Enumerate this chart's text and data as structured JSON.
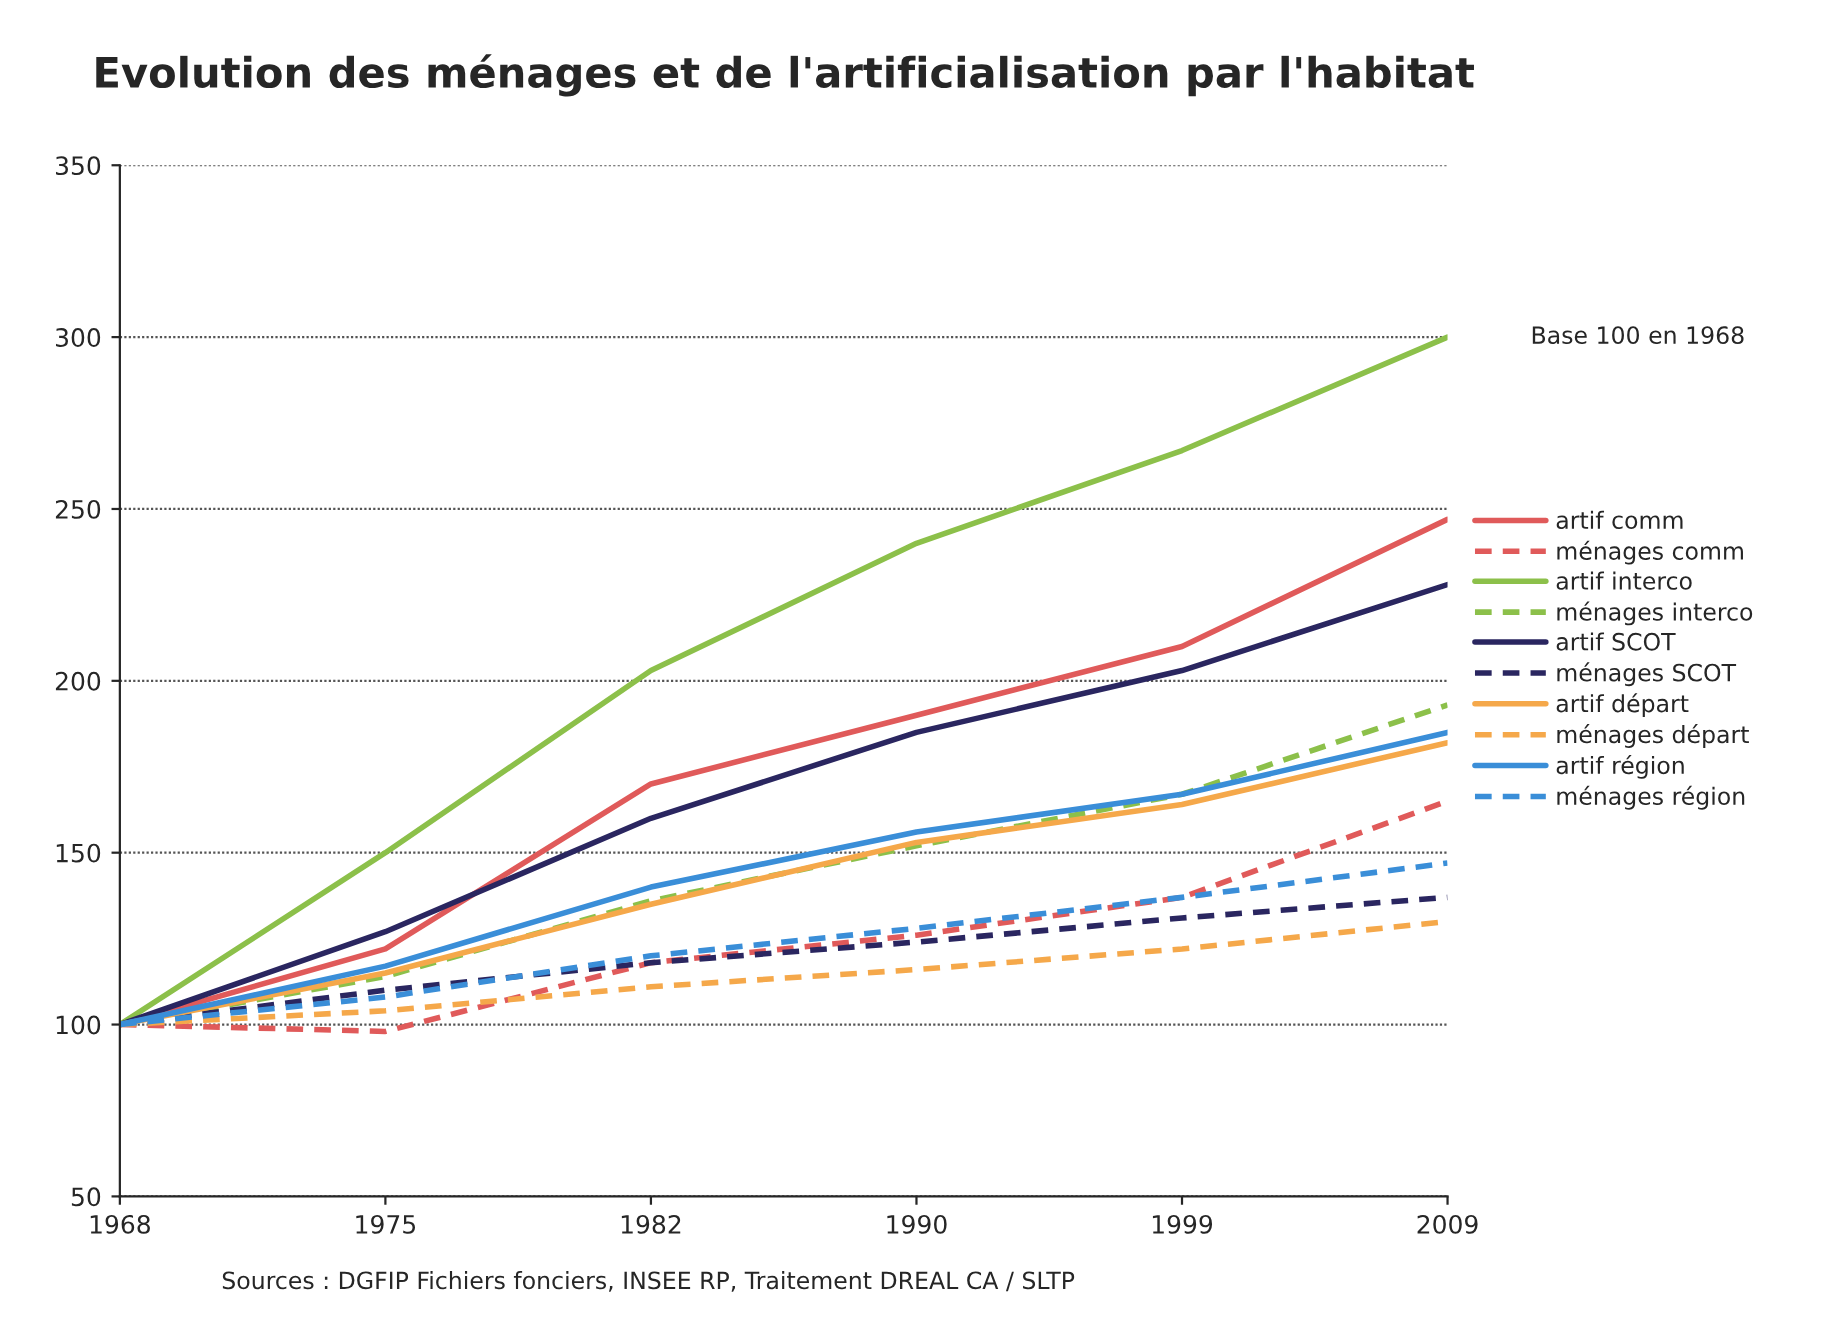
{
  "chart_data": {
    "type": "line",
    "title": "Evolution des ménages et de l'artificialisation par l'habitat",
    "categories": [
      "1968",
      "1975",
      "1982",
      "1990",
      "1999",
      "2009"
    ],
    "ylim": [
      50,
      350
    ],
    "yticks": [
      50,
      100,
      150,
      200,
      250,
      300,
      350
    ],
    "grid": "y",
    "legend": "right",
    "marker": "none",
    "annotations": [
      "Base 100 en 1968",
      "Sources : DGFIP Fichiers fonciers, INSEE RP, Traitement DREAL CA / SLTP"
    ],
    "series": [
      {
        "name": "artif comm",
        "color": "#e05a5a",
        "line_style": "solid",
        "values": [
          100,
          122,
          170,
          190,
          210,
          247
        ]
      },
      {
        "name": "ménages comm",
        "color": "#e05a5a",
        "line_style": "dashed",
        "values": [
          100,
          98,
          118,
          126,
          137,
          165
        ]
      },
      {
        "name": "artif interco",
        "color": "#8cc04a",
        "line_style": "solid",
        "values": [
          100,
          150,
          203,
          240,
          267,
          300
        ]
      },
      {
        "name": "ménages interco",
        "color": "#8cc04a",
        "line_style": "dashed",
        "values": [
          100,
          114,
          136,
          152,
          167,
          193
        ]
      },
      {
        "name": "artif SCOT",
        "color": "#2a2660",
        "line_style": "solid",
        "values": [
          100,
          127,
          160,
          185,
          203,
          228
        ]
      },
      {
        "name": "ménages SCOT",
        "color": "#2a2660",
        "line_style": "dashed",
        "values": [
          100,
          110,
          118,
          124,
          131,
          137
        ]
      },
      {
        "name": "artif départ",
        "color": "#f5a84a",
        "line_style": "solid",
        "values": [
          100,
          115,
          135,
          153,
          164,
          182
        ]
      },
      {
        "name": "ménages départ",
        "color": "#f5a84a",
        "line_style": "dashed",
        "values": [
          100,
          104,
          111,
          116,
          122,
          130
        ]
      },
      {
        "name": "artif région",
        "color": "#3a8ed8",
        "line_style": "solid",
        "values": [
          100,
          117,
          140,
          156,
          167,
          185
        ]
      },
      {
        "name": "ménages région",
        "color": "#3a8ed8",
        "line_style": "dashed",
        "values": [
          100,
          108,
          120,
          128,
          137,
          147
        ]
      }
    ]
  }
}
